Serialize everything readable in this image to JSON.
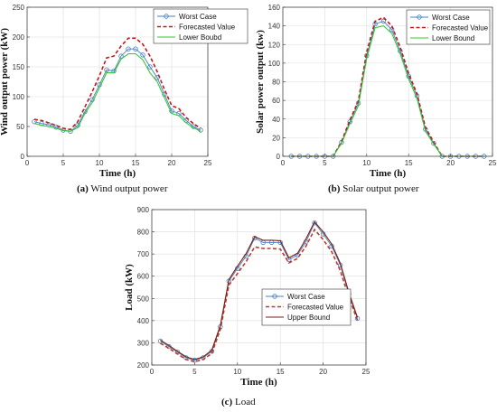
{
  "chart_data": [
    {
      "id": "wind",
      "type": "line",
      "caption_tag": "(a)",
      "caption_text": " Wind output power",
      "xlabel": "Time (h)",
      "ylabel": "Wind output power (kW)",
      "xlim": [
        0,
        25
      ],
      "ylim": [
        0,
        250
      ],
      "xticks": [
        0,
        5,
        10,
        15,
        20,
        25
      ],
      "yticks": [
        0,
        50,
        100,
        150,
        200,
        250
      ],
      "grid": true,
      "legend_position": "top-right",
      "x": [
        1,
        2,
        3,
        4,
        5,
        6,
        7,
        8,
        9,
        10,
        11,
        12,
        13,
        14,
        15,
        16,
        17,
        18,
        19,
        20,
        21,
        22,
        23,
        24
      ],
      "series": [
        {
          "name": "Worst Case",
          "style": "marker-line",
          "color": "#4a7fc1",
          "values": [
            58,
            55,
            53,
            49,
            44,
            42,
            52,
            75,
            95,
            120,
            145,
            143,
            168,
            180,
            180,
            170,
            150,
            132,
            104,
            76,
            72,
            60,
            50,
            44
          ]
        },
        {
          "name": "Forecasted Value",
          "style": "dashed",
          "color": "#c0191e",
          "values": [
            62,
            60,
            56,
            52,
            47,
            45,
            58,
            83,
            108,
            135,
            165,
            168,
            185,
            198,
            198,
            188,
            168,
            142,
            112,
            85,
            80,
            65,
            55,
            47
          ]
        },
        {
          "name": "Lower Boubd",
          "style": "solid",
          "color": "#34c934",
          "values": [
            55,
            52,
            50,
            47,
            43,
            42,
            48,
            72,
            90,
            115,
            140,
            140,
            163,
            172,
            172,
            162,
            140,
            125,
            98,
            72,
            68,
            56,
            48,
            42
          ]
        }
      ]
    },
    {
      "id": "solar",
      "type": "line",
      "caption_tag": "(b)",
      "caption_text": " Solar output power",
      "xlabel": "Time (h)",
      "ylabel": "Solar power output (kw)",
      "xlim": [
        0,
        25
      ],
      "ylim": [
        0,
        160
      ],
      "xticks": [
        0,
        5,
        10,
        15,
        20,
        25
      ],
      "yticks": [
        0,
        20,
        40,
        60,
        80,
        100,
        120,
        140,
        160
      ],
      "grid": true,
      "legend_position": "top-right",
      "x": [
        1,
        2,
        3,
        4,
        5,
        6,
        7,
        8,
        9,
        10,
        11,
        12,
        13,
        14,
        15,
        16,
        17,
        18,
        19,
        20,
        21,
        22,
        23,
        24
      ],
      "series": [
        {
          "name": "Worst Case",
          "style": "marker-line",
          "color": "#4a7fc1",
          "values": [
            0,
            0,
            0,
            0,
            0,
            0,
            15,
            37,
            57,
            108,
            142,
            145,
            136,
            113,
            86,
            65,
            29,
            14,
            0,
            0,
            0,
            0,
            0,
            0
          ]
        },
        {
          "name": "Forecasted Value",
          "style": "dashed",
          "color": "#c0191e",
          "values": [
            0,
            0,
            0,
            0,
            0,
            0,
            16,
            39,
            59,
            112,
            145,
            149,
            140,
            117,
            89,
            67,
            31,
            15,
            0,
            0,
            0,
            0,
            0,
            0
          ]
        },
        {
          "name": "Lower Bound",
          "style": "solid",
          "color": "#34c934",
          "values": [
            0,
            0,
            0,
            0,
            0,
            0,
            14,
            35,
            54,
            105,
            138,
            140,
            132,
            110,
            83,
            62,
            27,
            13,
            0,
            0,
            0,
            0,
            0,
            0
          ]
        }
      ]
    },
    {
      "id": "load",
      "type": "line",
      "caption_tag": "(c)",
      "caption_text": " Load",
      "xlabel": "Time (h)",
      "ylabel": "Load (kW)",
      "xlim": [
        0,
        25
      ],
      "ylim": [
        200,
        900
      ],
      "xticks": [
        0,
        5,
        10,
        15,
        20,
        25
      ],
      "yticks": [
        200,
        300,
        400,
        500,
        600,
        700,
        800,
        900
      ],
      "grid": true,
      "legend_position": "bottom-center",
      "x": [
        1,
        2,
        3,
        4,
        5,
        6,
        7,
        8,
        9,
        10,
        11,
        12,
        13,
        14,
        15,
        16,
        17,
        18,
        19,
        20,
        21,
        22,
        23,
        24
      ],
      "series": [
        {
          "name": "Worst Case",
          "style": "marker-line",
          "color": "#4a7fc1",
          "values": [
            308,
            283,
            258,
            233,
            222,
            233,
            262,
            372,
            578,
            635,
            690,
            772,
            752,
            752,
            752,
            675,
            695,
            755,
            840,
            790,
            735,
            650,
            520,
            410
          ]
        },
        {
          "name": "Forecasted Value",
          "style": "dashed",
          "color": "#c0392b",
          "values": [
            298,
            275,
            250,
            225,
            215,
            225,
            252,
            360,
            560,
            612,
            665,
            732,
            725,
            725,
            722,
            660,
            680,
            735,
            810,
            765,
            710,
            625,
            505,
            402
          ]
        },
        {
          "name": "Upper Bound",
          "style": "solid",
          "color": "#7a2010",
          "values": [
            312,
            288,
            262,
            237,
            225,
            237,
            267,
            378,
            585,
            645,
            702,
            778,
            762,
            762,
            760,
            683,
            703,
            768,
            845,
            800,
            745,
            658,
            528,
            415
          ]
        }
      ]
    }
  ]
}
